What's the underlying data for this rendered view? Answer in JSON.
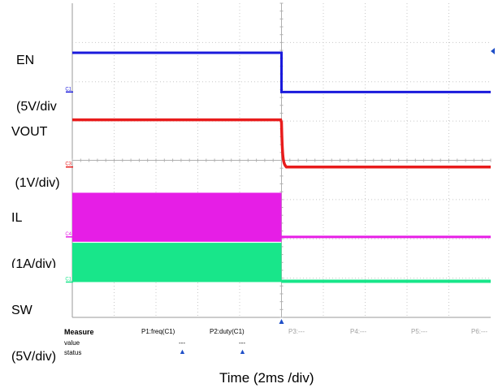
{
  "chart_data": {
    "type": "line",
    "title": "",
    "xlabel": "Time (2ms /div)",
    "x_divisions": 10,
    "y_divisions": 8,
    "transition_division": 5,
    "series": [
      {
        "name": "EN",
        "label_lines": [
          "EN",
          "(5V/div",
          "`"
        ],
        "marker": "C1",
        "color": "#1a1adc",
        "before": 5.0,
        "after": 0.0,
        "scale": "5V/div",
        "ground_div_from_top": 2.26,
        "style": "step"
      },
      {
        "name": "VOUT",
        "label_lines": [
          "VOUT",
          " (1V/div)"
        ],
        "marker": "C3",
        "color": "#e81c1c",
        "before": 1.2,
        "after": 0.0,
        "scale": "1V/div",
        "ground_div_from_top": 4.17,
        "style": "decay"
      },
      {
        "name": "IL",
        "label_lines": [
          "IL",
          "(1A/div)"
        ],
        "marker": "C4",
        "color": "#e61ee6",
        "before": 0.5,
        "after": 0.0,
        "scale": "1A/div",
        "ground_div_from_top": 5.95,
        "style": "band"
      },
      {
        "name": "SW",
        "label_lines": [
          "SW",
          "(5V/div)"
        ],
        "marker": "C1",
        "color": "#18e68a",
        "before": 5.0,
        "after": 0.0,
        "scale": "5V/div",
        "ground_div_from_top": 7.1,
        "style": "switching"
      }
    ]
  },
  "measure": {
    "heading": "Measure",
    "row_labels": [
      "value",
      "status"
    ],
    "params": [
      {
        "name": "P1:freq(C1)",
        "value": "---",
        "active": true
      },
      {
        "name": "P2:duty(C1)",
        "value": "---",
        "active": true
      },
      {
        "name": "P3:---",
        "value": "",
        "active": false
      },
      {
        "name": "P4:---",
        "value": "",
        "active": false
      },
      {
        "name": "P5:---",
        "value": "",
        "active": false
      },
      {
        "name": "P6:---",
        "value": "",
        "active": false
      }
    ]
  },
  "colors": {
    "grid": "#c8c8c8",
    "frame": "#9a9a9a",
    "trigger": "#1f4fc8"
  }
}
